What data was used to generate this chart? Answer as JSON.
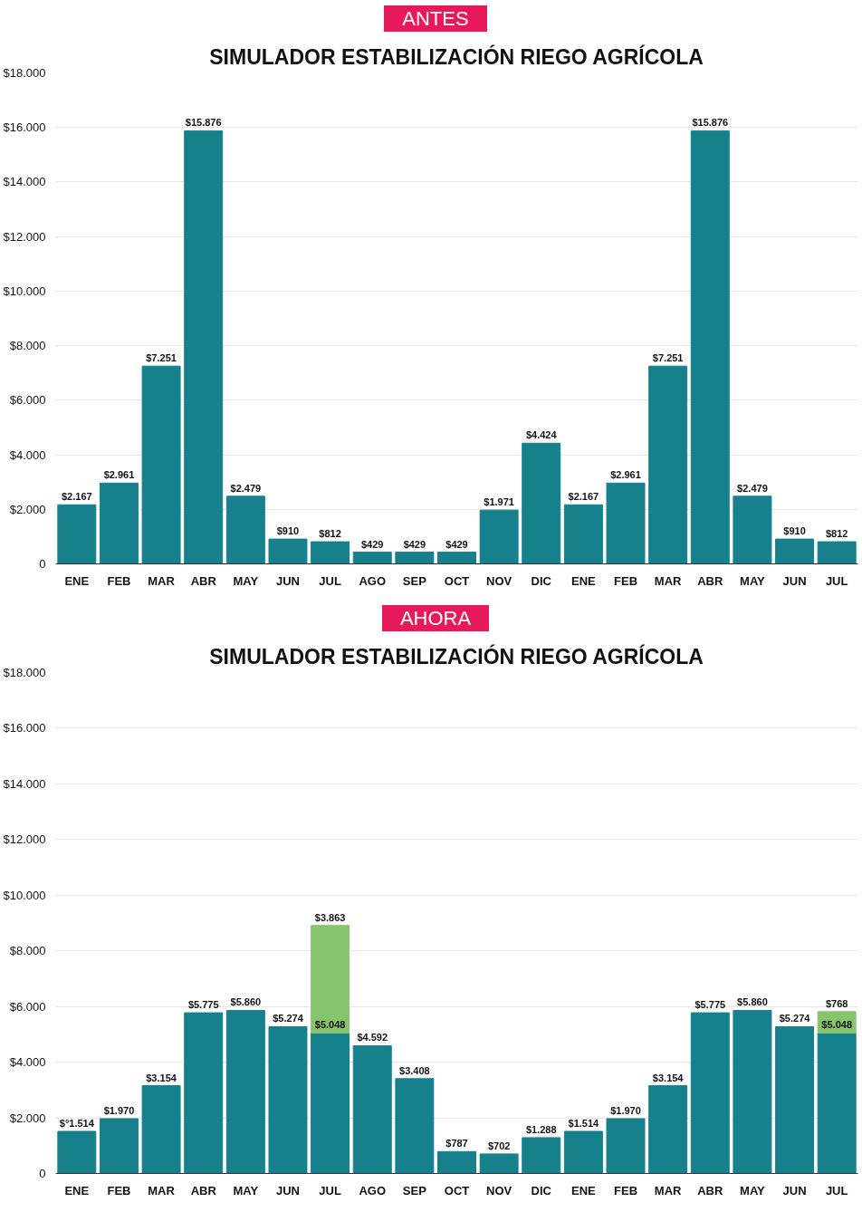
{
  "chart_data": [
    {
      "type": "bar",
      "subtitle": "ANTES",
      "title": "SIMULADOR ESTABILIZACIÓN RIEGO AGRÍCOLA",
      "categories": [
        "ENE",
        "FEB",
        "MAR",
        "ABR",
        "MAY",
        "JUN",
        "JUL",
        "AGO",
        "SEP",
        "OCT",
        "NOV",
        "DIC",
        "ENE",
        "FEB",
        "MAR",
        "ABR",
        "MAY",
        "JUN",
        "JUL"
      ],
      "values": [
        2167,
        2961,
        7251,
        15876,
        2479,
        910,
        812,
        429,
        429,
        429,
        1971,
        4424,
        2167,
        2961,
        7251,
        15876,
        2479,
        910,
        812
      ],
      "value_labels": [
        "$2.167",
        "$2.961",
        "$7.251",
        "$15.876",
        "$2.479",
        "$910",
        "$812",
        "$429",
        "$429",
        "$429",
        "$1.971",
        "$4.424",
        "$2.167",
        "$2.961",
        "$7.251",
        "$15.876",
        "$2.479",
        "$910",
        "$812"
      ],
      "color": "#16808c",
      "ylim": [
        0,
        18000
      ],
      "yticks": [
        0,
        {
          "value": 2000,
          "label": "$2.000"
        },
        {
          "value": 4000,
          "label": "$4.000"
        },
        {
          "value": 6000,
          "label": "$6.000"
        },
        {
          "value": 8000,
          "label": "$8.000"
        },
        {
          "value": 10000,
          "label": "$10.000"
        },
        {
          "value": 12000,
          "label": "$12.000"
        },
        {
          "value": 14000,
          "label": "$14.000"
        },
        {
          "value": 16000,
          "label": "$16.000"
        },
        {
          "value": 18000,
          "label": "$18.000"
        }
      ],
      "grid": "y"
    },
    {
      "type": "bar",
      "subtitle": "AHORA",
      "title": "SIMULADOR ESTABILIZACIÓN RIEGO AGRÍCOLA",
      "stacked": true,
      "categories": [
        "ENE",
        "FEB",
        "MAR",
        "ABR",
        "MAY",
        "JUN",
        "JUL",
        "AGO",
        "SEP",
        "OCT",
        "NOV",
        "DIC",
        "ENE",
        "FEB",
        "MAR",
        "ABR",
        "MAY",
        "JUN",
        "JUL"
      ],
      "series": [
        {
          "color": "#16808c",
          "values": [
            1514,
            1970,
            3154,
            5775,
            5860,
            5274,
            5048,
            4592,
            3408,
            787,
            702,
            1288,
            1514,
            1970,
            3154,
            5775,
            5860,
            5274,
            5048
          ],
          "value_labels": [
            "$°1.514",
            "$1.970",
            "$3.154",
            "$5.775",
            "$5.860",
            "$5.274",
            "$5.048",
            "$4.592",
            "$3.408",
            "$787",
            "$702",
            "$1.288",
            "$1.514",
            "$1.970",
            "$3.154",
            "$5.775",
            "$5.860",
            "$5.274",
            "$5.048"
          ]
        },
        {
          "color": "#86c56e",
          "values": [
            null,
            null,
            null,
            null,
            null,
            null,
            3863,
            null,
            null,
            null,
            null,
            null,
            null,
            null,
            null,
            null,
            null,
            null,
            768
          ],
          "value_labels": [
            null,
            null,
            null,
            null,
            null,
            null,
            "$3.863",
            null,
            null,
            null,
            null,
            null,
            null,
            null,
            null,
            null,
            null,
            null,
            "$768"
          ]
        }
      ],
      "ylim": [
        0,
        18000
      ],
      "yticks": [
        0,
        {
          "value": 2000,
          "label": "$2.000"
        },
        {
          "value": 4000,
          "label": "$4.000"
        },
        {
          "value": 6000,
          "label": "$6.000"
        },
        {
          "value": 8000,
          "label": "$8.000"
        },
        {
          "value": 10000,
          "label": "$10.000"
        },
        {
          "value": 12000,
          "label": "$12.000"
        },
        {
          "value": 14000,
          "label": "$14.000"
        },
        {
          "value": 16000,
          "label": "$16.000"
        },
        {
          "value": 18000,
          "label": "$18.000"
        }
      ],
      "grid": "y"
    }
  ]
}
